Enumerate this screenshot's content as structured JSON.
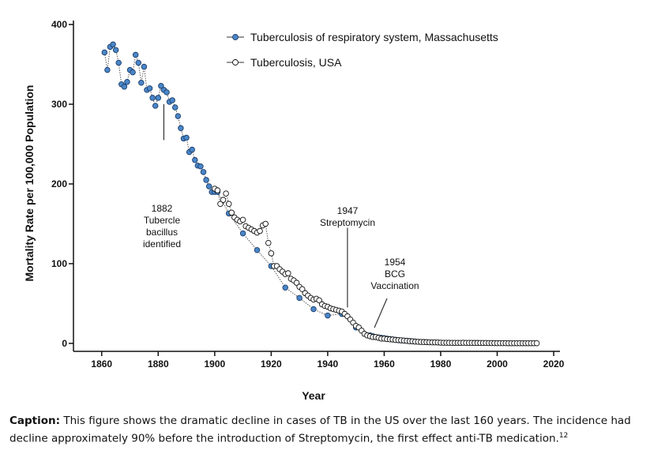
{
  "chart_data": {
    "type": "line",
    "xlabel": "Year",
    "ylabel": "Mortality Rate per 100,000 Population",
    "xlim": [
      1850,
      2020
    ],
    "xticks": [
      1860,
      1880,
      1900,
      1920,
      1940,
      1960,
      1980,
      2000,
      2020
    ],
    "ylim": [
      -10,
      405
    ],
    "yticks": [
      0,
      100,
      200,
      300,
      400
    ],
    "series": [
      {
        "name": "Tuberculosis of respiratory system, Massachusetts",
        "color": "#4a86c8",
        "marker_fill": "filled",
        "x": [
          1861,
          1862,
          1863,
          1864,
          1865,
          1866,
          1867,
          1868,
          1869,
          1870,
          1871,
          1872,
          1873,
          1874,
          1875,
          1876,
          1877,
          1878,
          1879,
          1880,
          1881,
          1882,
          1883,
          1884,
          1885,
          1886,
          1887,
          1888,
          1889,
          1890,
          1891,
          1892,
          1893,
          1894,
          1895,
          1896,
          1897,
          1898,
          1899,
          1900,
          1901,
          1905,
          1910,
          1915,
          1920,
          1925,
          1930,
          1935,
          1940,
          1945,
          1950,
          1955,
          1956,
          1957,
          1958,
          1959,
          1960,
          1961,
          1962,
          1963,
          1964,
          1965,
          1966,
          1967,
          1968,
          1969,
          1970
        ],
        "values": [
          365,
          343,
          372,
          375,
          368,
          352,
          325,
          322,
          328,
          343,
          340,
          362,
          352,
          327,
          347,
          318,
          320,
          308,
          298,
          308,
          323,
          318,
          315,
          303,
          305,
          296,
          285,
          270,
          257,
          258,
          240,
          243,
          230,
          223,
          222,
          215,
          205,
          197,
          190,
          190,
          190,
          163,
          138,
          117,
          97,
          70,
          57,
          43,
          35,
          37,
          20,
          10,
          9,
          8,
          7.5,
          7,
          6.5,
          6,
          5.5,
          5,
          4.5,
          4,
          3.8,
          3.5,
          3.2,
          3,
          2.8
        ]
      },
      {
        "name": "Tuberculosis, USA",
        "color": "#ffffff",
        "marker_fill": "hollow",
        "x": [
          1900,
          1901,
          1902,
          1903,
          1904,
          1905,
          1906,
          1907,
          1908,
          1909,
          1910,
          1911,
          1912,
          1913,
          1914,
          1915,
          1916,
          1917,
          1918,
          1919,
          1920,
          1921,
          1922,
          1923,
          1924,
          1925,
          1926,
          1927,
          1928,
          1929,
          1930,
          1931,
          1932,
          1933,
          1934,
          1935,
          1936,
          1937,
          1938,
          1939,
          1940,
          1941,
          1942,
          1943,
          1944,
          1945,
          1946,
          1947,
          1948,
          1949,
          1950,
          1951,
          1952,
          1953,
          1954,
          1955,
          1956,
          1957,
          1958,
          1959,
          1960,
          1961,
          1962,
          1963,
          1964,
          1965,
          1966,
          1967,
          1968,
          1969,
          1970,
          1971,
          1972,
          1973,
          1974,
          1975,
          1976,
          1977,
          1978,
          1979,
          1980,
          1981,
          1982,
          1983,
          1984,
          1985,
          1986,
          1987,
          1988,
          1989,
          1990,
          1991,
          1992,
          1993,
          1994,
          1995,
          1996,
          1997,
          1998,
          1999,
          2000,
          2001,
          2002,
          2003,
          2004,
          2005,
          2006,
          2007,
          2008,
          2009,
          2010,
          2011,
          2012,
          2013,
          2014
        ],
        "values": [
          194,
          192,
          175,
          180,
          188,
          175,
          164,
          158,
          155,
          153,
          155,
          147,
          145,
          143,
          141,
          139,
          141,
          148,
          150,
          126,
          113,
          97,
          97,
          93,
          90,
          87,
          88,
          81,
          79,
          76,
          71,
          68,
          63,
          60,
          57,
          55,
          56,
          54,
          49,
          47,
          46,
          44,
          43,
          42,
          41,
          40,
          37,
          34,
          30,
          26,
          22,
          20,
          16,
          12,
          10,
          9,
          8,
          8,
          7,
          6,
          6,
          5.4,
          5.1,
          4.9,
          4.3,
          4.1,
          3.9,
          3.5,
          3.1,
          2.8,
          2.6,
          2.2,
          2,
          1.8,
          1.7,
          1.6,
          1.4,
          1.3,
          1.3,
          1.2,
          0.9,
          0.8,
          0.8,
          0.8,
          0.7,
          0.7,
          0.7,
          0.7,
          0.8,
          0.7,
          0.7,
          0.7,
          0.6,
          0.6,
          0.5,
          0.5,
          0.5,
          0.4,
          0.4,
          0.3,
          0.3,
          0.3,
          0.3,
          0.3,
          0.2,
          0.2,
          0.2,
          0.2,
          0.2,
          0.2,
          0.2,
          0.2,
          0.2,
          0.2,
          0.2
        ]
      }
    ],
    "annotations": [
      {
        "x": 1882,
        "lines": [
          "1882",
          "Tubercle",
          "bacillus",
          "identified"
        ]
      },
      {
        "x": 1947,
        "lines": [
          "1947",
          "Streptomycin"
        ]
      },
      {
        "x": 1954,
        "lines": [
          "1954",
          "BCG",
          "Vaccination"
        ]
      }
    ],
    "legend": "top"
  },
  "caption": {
    "label": "Caption:",
    "text": " This figure shows the dramatic decline in cases of TB in the US over the last 160 years. The incidence had decline approximately 90% before the introduction of Streptomycin, the first effect anti-TB medication.",
    "ref": "12"
  }
}
